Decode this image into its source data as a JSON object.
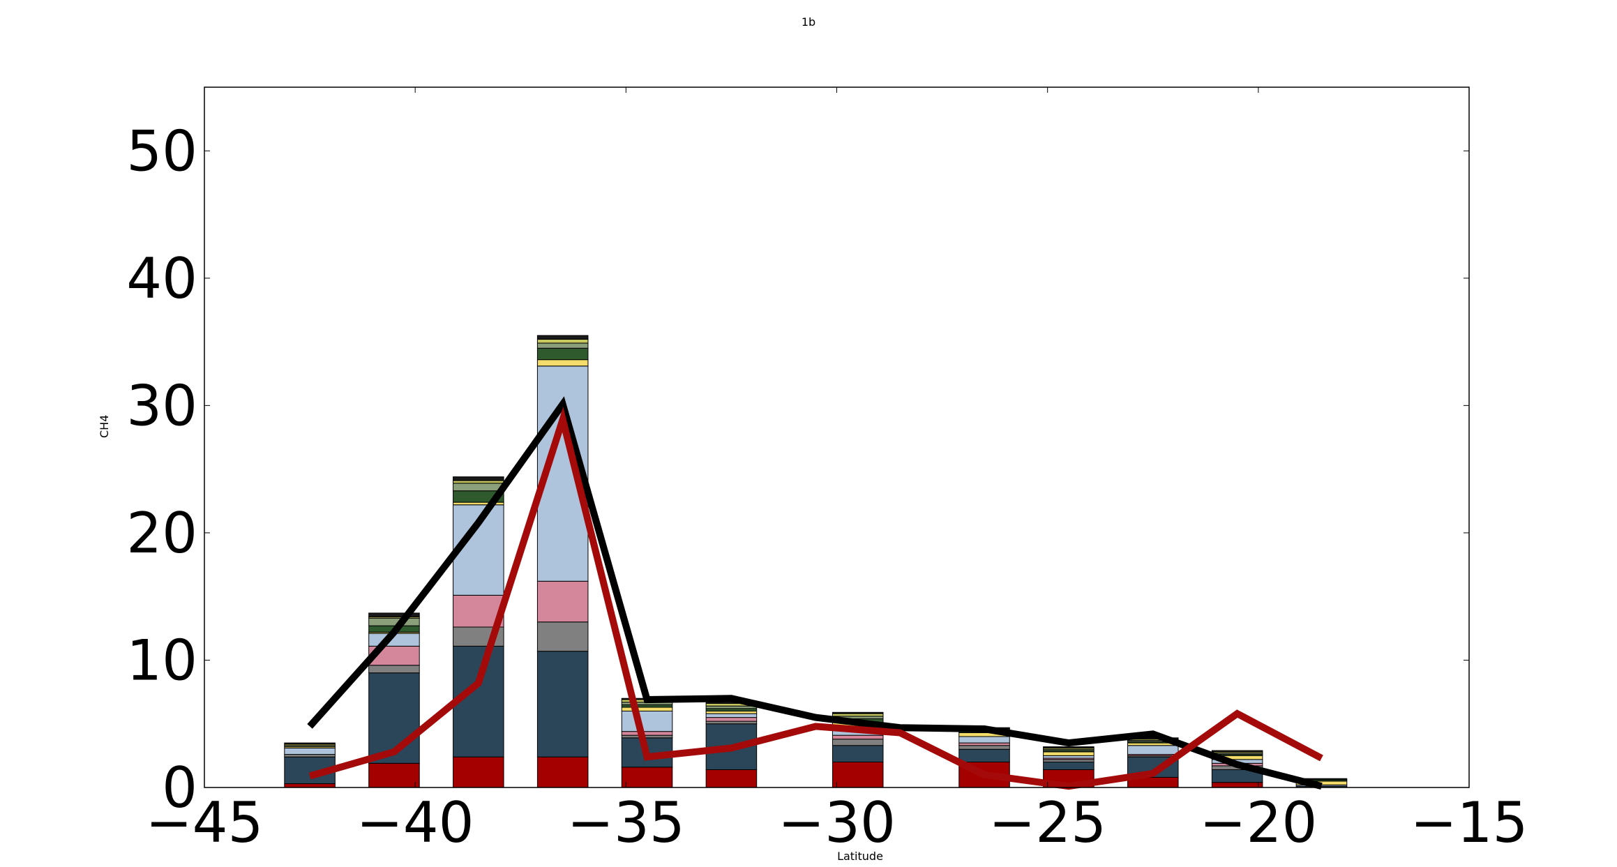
{
  "chart_data": {
    "type": "bar",
    "title": "1b",
    "xlabel": "Latitude",
    "ylabel": "CH4",
    "xlim": [
      -45,
      -15
    ],
    "ylim": [
      0,
      55
    ],
    "xticks": [
      "−45",
      "−40",
      "−35",
      "−30",
      "−25",
      "−20",
      "−15"
    ],
    "xtick_values": [
      -45,
      -40,
      -35,
      -30,
      -25,
      -20,
      -15
    ],
    "yticks": [
      "0",
      "10",
      "20",
      "30",
      "40",
      "50"
    ],
    "ytick_values": [
      0,
      10,
      20,
      30,
      40,
      50
    ],
    "bar_width": 1.2,
    "bar_centers": [
      -42.5,
      -40.5,
      -38.5,
      -36.5,
      -34.5,
      -32.5,
      -29.5,
      -26.5,
      -24.5,
      -22.5,
      -20.5,
      -18.5
    ],
    "segment_colors": [
      "#a50000",
      "#2b4559",
      "#808080",
      "#d4869b",
      "#aec4dc",
      "#f4dc6a",
      "#2e5a2e",
      "#8ba07a",
      "#c8c860",
      "#1a1a1a"
    ],
    "stacks": [
      [
        0.3,
        2.1,
        0.2,
        0.0,
        0.5,
        0.1,
        0.0,
        0.1,
        0.1,
        0.1
      ],
      [
        1.9,
        7.1,
        0.6,
        1.5,
        1.0,
        0.1,
        0.5,
        0.6,
        0.1,
        0.3
      ],
      [
        2.4,
        8.7,
        1.5,
        2.5,
        7.1,
        0.2,
        0.9,
        0.6,
        0.2,
        0.3
      ],
      [
        2.4,
        8.3,
        2.3,
        3.2,
        16.9,
        0.5,
        0.9,
        0.4,
        0.3,
        0.3
      ],
      [
        1.6,
        2.3,
        0.2,
        0.3,
        1.6,
        0.3,
        0.2,
        0.2,
        0.2,
        0.1
      ],
      [
        1.4,
        3.6,
        0.2,
        0.3,
        0.3,
        0.2,
        0.2,
        0.2,
        0.2,
        0.1
      ],
      [
        2.0,
        1.3,
        0.5,
        0.3,
        0.7,
        0.3,
        0.3,
        0.2,
        0.2,
        0.1
      ],
      [
        2.0,
        1.0,
        0.3,
        0.2,
        0.5,
        0.3,
        0.1,
        0.1,
        0.1,
        0.1
      ],
      [
        1.4,
        0.6,
        0.2,
        0.1,
        0.2,
        0.3,
        0.1,
        0.1,
        0.1,
        0.1
      ],
      [
        0.8,
        1.6,
        0.1,
        0.1,
        0.7,
        0.2,
        0.1,
        0.1,
        0.1,
        0.1
      ],
      [
        0.4,
        1.0,
        0.3,
        0.2,
        0.3,
        0.3,
        0.1,
        0.1,
        0.1,
        0.1
      ],
      [
        0.0,
        0.1,
        0.0,
        0.0,
        0.1,
        0.3,
        0.1,
        0.0,
        0.0,
        0.1
      ]
    ],
    "series": [
      {
        "color": "#000000",
        "x": [
          -42.5,
          -40.5,
          -38.5,
          -36.5,
          -34.5,
          -32.5,
          -30.5,
          -28.5,
          -26.5,
          -24.5,
          -22.5,
          -20.5,
          -18.5
        ],
        "values": [
          4.8,
          12.2,
          20.8,
          30.1,
          6.9,
          7.0,
          5.5,
          4.7,
          4.6,
          3.5,
          4.2,
          1.8,
          0.1
        ]
      },
      {
        "color": "#a50a0a",
        "x": [
          -42.5,
          -40.5,
          -38.5,
          -36.5,
          -34.5,
          -32.5,
          -30.5,
          -28.5,
          -26.5,
          -24.5,
          -22.5,
          -20.5,
          -18.5
        ],
        "values": [
          0.9,
          2.8,
          8.2,
          28.9,
          2.4,
          3.1,
          4.8,
          4.3,
          1.0,
          0.1,
          1.1,
          5.8,
          2.3
        ]
      }
    ]
  }
}
